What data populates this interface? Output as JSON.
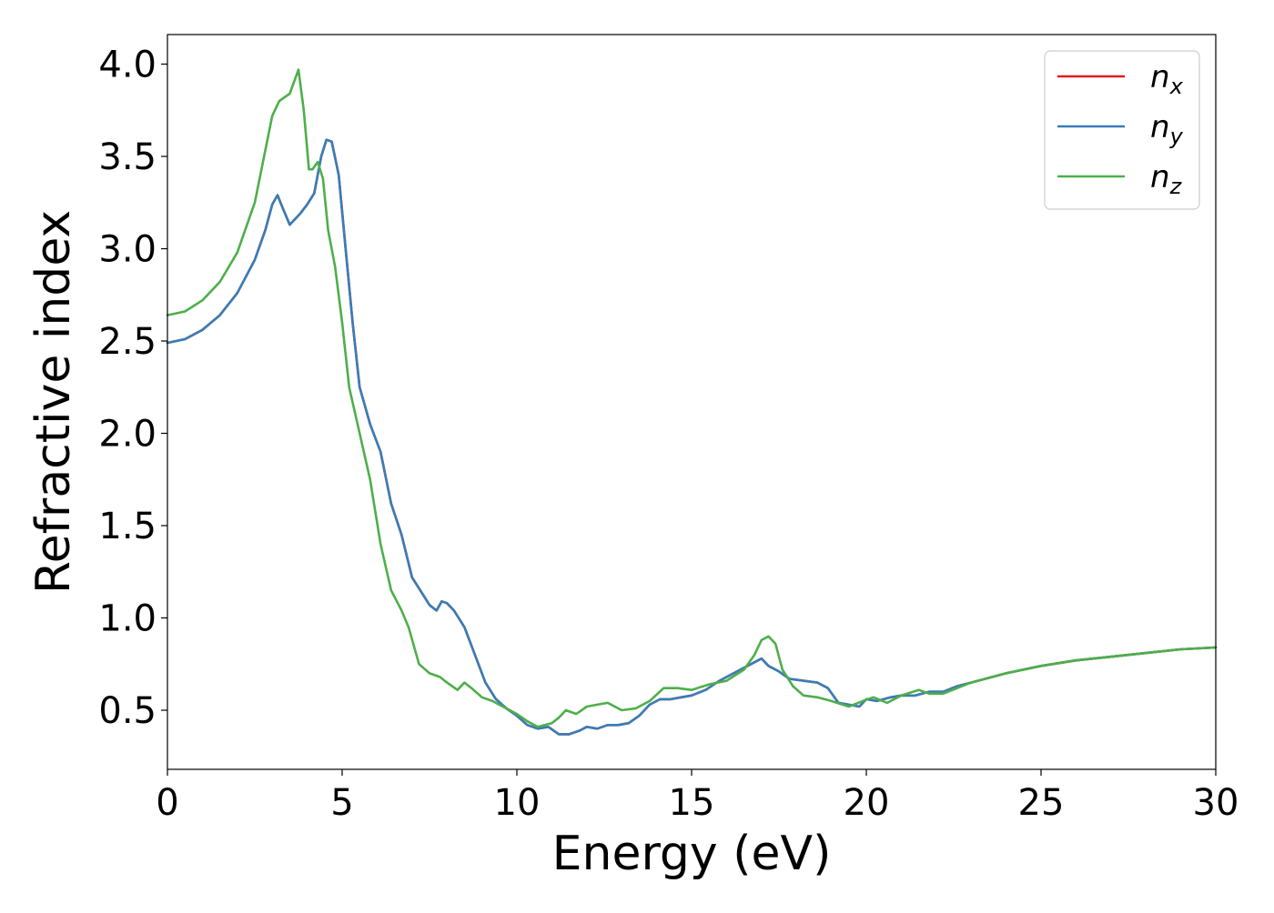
{
  "chart_data": {
    "type": "line",
    "title": "",
    "xlabel": "Energy (eV)",
    "ylabel": "Refractive index",
    "xlim": [
      0,
      30
    ],
    "ylim": [
      0.18,
      4.16
    ],
    "xticks": [
      0,
      5,
      10,
      15,
      20,
      25,
      30
    ],
    "yticks": [
      0.5,
      1.0,
      1.5,
      2.0,
      2.5,
      3.0,
      3.5,
      4.0
    ],
    "xtick_labels": [
      "0",
      "5",
      "10",
      "15",
      "20",
      "25",
      "30"
    ],
    "ytick_labels": [
      "0.5",
      "1.0",
      "1.5",
      "2.0",
      "2.5",
      "3.0",
      "3.5",
      "4.0"
    ],
    "grid": false,
    "legend_position": "top-right",
    "series": [
      {
        "name": "n_x",
        "legend_base": "n",
        "legend_sub": "x",
        "color": "#e41a1c",
        "x": [
          0,
          0.5,
          1.0,
          1.5,
          2.0,
          2.5,
          2.8,
          3.0,
          3.15,
          3.3,
          3.5,
          3.8,
          4.0,
          4.2,
          4.4,
          4.55,
          4.7,
          4.9,
          5.1,
          5.3,
          5.5,
          5.8,
          6.1,
          6.4,
          6.7,
          7.0,
          7.3,
          7.5,
          7.7,
          7.85,
          8.0,
          8.2,
          8.5,
          8.8,
          9.1,
          9.4,
          9.7,
          10.0,
          10.3,
          10.6,
          10.9,
          11.2,
          11.5,
          11.8,
          12.0,
          12.3,
          12.6,
          12.9,
          13.2,
          13.5,
          13.8,
          14.1,
          14.4,
          14.7,
          15.0,
          15.4,
          15.8,
          16.2,
          16.6,
          16.8,
          17.0,
          17.2,
          17.5,
          17.8,
          18.2,
          18.6,
          18.9,
          19.2,
          19.5,
          19.8,
          20.0,
          20.3,
          20.7,
          21.0,
          21.4,
          21.8,
          22.2,
          22.6,
          23.0,
          24.0,
          25.0,
          26.0,
          27.0,
          28.0,
          29.0,
          30.0
        ],
        "y": [
          2.49,
          2.51,
          2.56,
          2.64,
          2.76,
          2.94,
          3.1,
          3.24,
          3.29,
          3.22,
          3.13,
          3.19,
          3.24,
          3.3,
          3.5,
          3.59,
          3.58,
          3.4,
          3.0,
          2.6,
          2.25,
          2.05,
          1.9,
          1.62,
          1.45,
          1.22,
          1.13,
          1.07,
          1.04,
          1.09,
          1.08,
          1.04,
          0.95,
          0.8,
          0.65,
          0.56,
          0.51,
          0.47,
          0.42,
          0.4,
          0.41,
          0.37,
          0.37,
          0.39,
          0.41,
          0.4,
          0.42,
          0.42,
          0.43,
          0.47,
          0.53,
          0.56,
          0.56,
          0.57,
          0.58,
          0.61,
          0.66,
          0.7,
          0.74,
          0.76,
          0.78,
          0.74,
          0.71,
          0.67,
          0.66,
          0.65,
          0.62,
          0.54,
          0.53,
          0.52,
          0.56,
          0.55,
          0.57,
          0.58,
          0.58,
          0.6,
          0.6,
          0.63,
          0.65,
          0.7,
          0.74,
          0.77,
          0.79,
          0.81,
          0.83,
          0.84
        ]
      },
      {
        "name": "n_y",
        "legend_base": "n",
        "legend_sub": "y",
        "color": "#377eb8",
        "x": [
          0,
          0.5,
          1.0,
          1.5,
          2.0,
          2.5,
          2.8,
          3.0,
          3.15,
          3.3,
          3.5,
          3.8,
          4.0,
          4.2,
          4.4,
          4.55,
          4.7,
          4.9,
          5.1,
          5.3,
          5.5,
          5.8,
          6.1,
          6.4,
          6.7,
          7.0,
          7.3,
          7.5,
          7.7,
          7.85,
          8.0,
          8.2,
          8.5,
          8.8,
          9.1,
          9.4,
          9.7,
          10.0,
          10.3,
          10.6,
          10.9,
          11.2,
          11.5,
          11.8,
          12.0,
          12.3,
          12.6,
          12.9,
          13.2,
          13.5,
          13.8,
          14.1,
          14.4,
          14.7,
          15.0,
          15.4,
          15.8,
          16.2,
          16.6,
          16.8,
          17.0,
          17.2,
          17.5,
          17.8,
          18.2,
          18.6,
          18.9,
          19.2,
          19.5,
          19.8,
          20.0,
          20.3,
          20.7,
          21.0,
          21.4,
          21.8,
          22.2,
          22.6,
          23.0,
          24.0,
          25.0,
          26.0,
          27.0,
          28.0,
          29.0,
          30.0
        ],
        "y": [
          2.49,
          2.51,
          2.56,
          2.64,
          2.76,
          2.94,
          3.1,
          3.24,
          3.29,
          3.22,
          3.13,
          3.19,
          3.24,
          3.3,
          3.5,
          3.59,
          3.58,
          3.4,
          3.0,
          2.6,
          2.25,
          2.05,
          1.9,
          1.62,
          1.45,
          1.22,
          1.13,
          1.07,
          1.04,
          1.09,
          1.08,
          1.04,
          0.95,
          0.8,
          0.65,
          0.56,
          0.51,
          0.47,
          0.42,
          0.4,
          0.41,
          0.37,
          0.37,
          0.39,
          0.41,
          0.4,
          0.42,
          0.42,
          0.43,
          0.47,
          0.53,
          0.56,
          0.56,
          0.57,
          0.58,
          0.61,
          0.66,
          0.7,
          0.74,
          0.76,
          0.78,
          0.74,
          0.71,
          0.67,
          0.66,
          0.65,
          0.62,
          0.54,
          0.53,
          0.52,
          0.56,
          0.55,
          0.57,
          0.58,
          0.58,
          0.6,
          0.6,
          0.63,
          0.65,
          0.7,
          0.74,
          0.77,
          0.79,
          0.81,
          0.83,
          0.84
        ]
      },
      {
        "name": "n_z",
        "legend_base": "n",
        "legend_sub": "z",
        "color": "#4daf4a",
        "x": [
          0,
          0.5,
          1.0,
          1.5,
          2.0,
          2.5,
          3.0,
          3.2,
          3.5,
          3.75,
          3.9,
          4.05,
          4.15,
          4.3,
          4.45,
          4.6,
          4.8,
          5.0,
          5.2,
          5.5,
          5.8,
          6.1,
          6.4,
          6.7,
          6.9,
          7.2,
          7.5,
          7.8,
          8.0,
          8.3,
          8.5,
          8.7,
          9.0,
          9.3,
          9.6,
          10.0,
          10.3,
          10.6,
          11.0,
          11.2,
          11.4,
          11.7,
          12.0,
          12.3,
          12.6,
          13.0,
          13.4,
          13.8,
          14.2,
          14.6,
          15.0,
          15.5,
          16.0,
          16.5,
          16.8,
          17.0,
          17.2,
          17.4,
          17.6,
          17.9,
          18.2,
          18.6,
          19.0,
          19.5,
          19.9,
          20.2,
          20.6,
          21.0,
          21.5,
          21.8,
          22.2,
          22.6,
          23.0,
          24.0,
          25.0,
          26.0,
          27.0,
          28.0,
          29.0,
          30.0
        ],
        "y": [
          2.64,
          2.66,
          2.72,
          2.82,
          2.98,
          3.25,
          3.72,
          3.8,
          3.84,
          3.97,
          3.75,
          3.43,
          3.43,
          3.47,
          3.38,
          3.1,
          2.9,
          2.6,
          2.25,
          2.0,
          1.75,
          1.4,
          1.15,
          1.04,
          0.95,
          0.75,
          0.7,
          0.68,
          0.65,
          0.61,
          0.65,
          0.62,
          0.57,
          0.55,
          0.52,
          0.48,
          0.44,
          0.41,
          0.43,
          0.46,
          0.5,
          0.48,
          0.52,
          0.53,
          0.54,
          0.5,
          0.51,
          0.55,
          0.62,
          0.62,
          0.61,
          0.64,
          0.66,
          0.72,
          0.8,
          0.88,
          0.9,
          0.86,
          0.72,
          0.63,
          0.58,
          0.57,
          0.55,
          0.52,
          0.55,
          0.57,
          0.54,
          0.58,
          0.61,
          0.59,
          0.59,
          0.62,
          0.65,
          0.7,
          0.74,
          0.77,
          0.79,
          0.81,
          0.83,
          0.84
        ]
      }
    ]
  }
}
